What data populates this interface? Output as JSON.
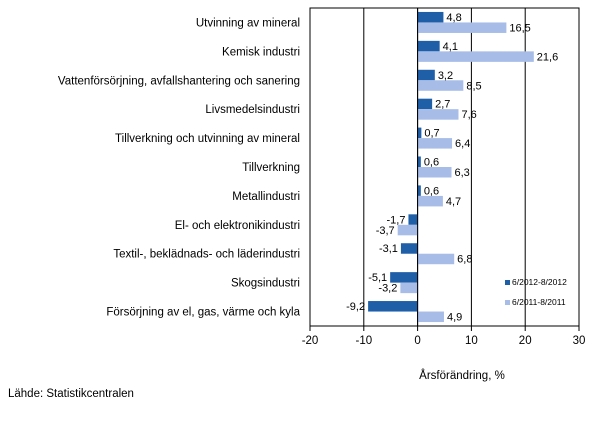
{
  "chart_data": {
    "type": "bar",
    "orientation": "horizontal",
    "categories": [
      "Utvinning av mineral",
      "Kemisk industri",
      "Vattenförsörjning, avfallshantering och sanering",
      "Livsmedelsindustri",
      "Tillverkning och utvinning av mineral",
      "Tillverkning",
      "Metallindustri",
      "El- och elektronikindustri",
      "Textil-, beklädnads- och läderindustri",
      "Skogsindustri",
      "Försörjning av el, gas, värme och kyla"
    ],
    "series": [
      {
        "name": "6/2012-8/2012",
        "color": "#1f5fa8",
        "values": [
          4.8,
          4.1,
          3.2,
          2.7,
          0.7,
          0.6,
          0.6,
          -1.7,
          -3.1,
          -5.1,
          -9.2
        ],
        "labels": [
          "4,8",
          "4,1",
          "3,2",
          "2,7",
          "0,7",
          "0,6",
          "0,6",
          "-1,7",
          "-3,1",
          "-5,1",
          "-9,2"
        ]
      },
      {
        "name": "6/2011-8/2011",
        "color": "#a7bde8",
        "values": [
          16.5,
          21.6,
          8.5,
          7.6,
          6.4,
          6.3,
          4.7,
          -3.7,
          6.8,
          -3.2,
          4.9
        ],
        "labels": [
          "16,5",
          "21,6",
          "8,5",
          "7,6",
          "6,4",
          "6,3",
          "4,7",
          "-3,7",
          "6,8",
          "-3,2",
          "4,9"
        ]
      }
    ],
    "xlim": [
      -20,
      30
    ],
    "xticks": [
      "-20",
      "-10",
      "0",
      "10",
      "20",
      "30"
    ],
    "xtick_values": [
      -20,
      -10,
      0,
      10,
      20,
      30
    ],
    "xlabel": "Årsförändring, %",
    "grid": "vertical major lines",
    "legend_position": "bottom-right inside plot"
  },
  "source_text": "Lähde: Statistikcentralen"
}
